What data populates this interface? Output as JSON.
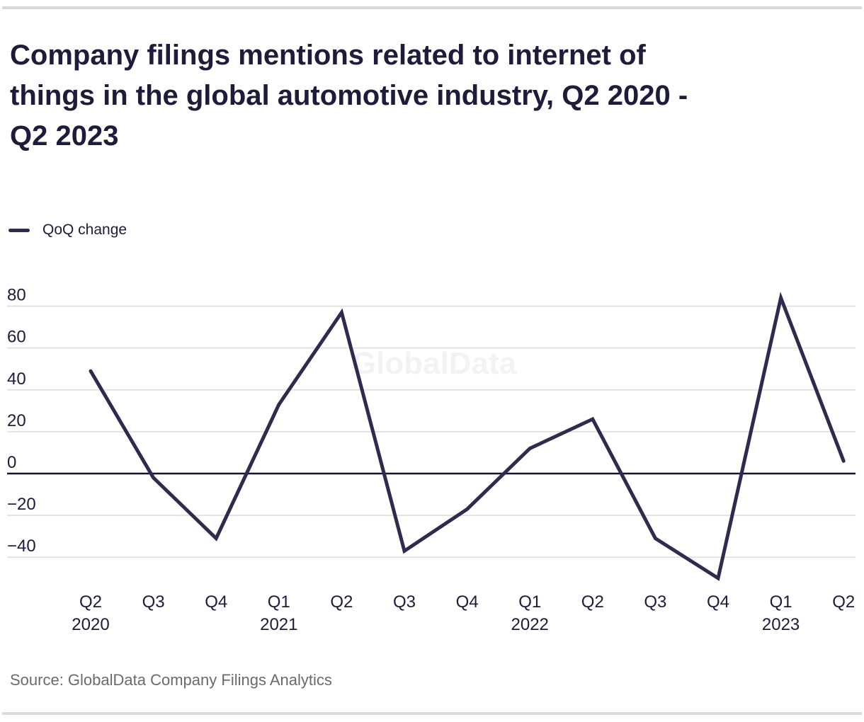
{
  "page": {
    "title_lines": [
      "Company filings mentions related to internet of",
      "things in the global automotive industry, Q2 2020 -",
      "Q2 2023"
    ],
    "source": "Source: GlobalData Company Filings Analytics"
  },
  "legend": {
    "label": "QoQ change"
  },
  "watermark": "GlobalData",
  "colors": {
    "title_text": "#1d1c3a",
    "series_line": "#2d2c4e",
    "zero_line": "#14142e",
    "gridline": "#e0e0e0",
    "axis_text": "#1d1c3a",
    "watermark": "#f3f3f3",
    "source_text": "#6b6b6b",
    "border_rule": "#d9d9d9",
    "background": "#ffffff"
  },
  "chart_data": {
    "type": "line",
    "title": "Company filings mentions related to internet of things in the global automotive industry, Q2 2020 - Q2 2023",
    "xlabel": "",
    "ylabel": "",
    "categories": [
      "Q2 2020",
      "Q3 2020",
      "Q4 2020",
      "Q1 2021",
      "Q2 2021",
      "Q3 2021",
      "Q4 2021",
      "Q1 2022",
      "Q2 2022",
      "Q3 2022",
      "Q4 2022",
      "Q1 2023",
      "Q2 2023"
    ],
    "series": [
      {
        "name": "QoQ change",
        "values": [
          49,
          -2,
          -31,
          33,
          77,
          -37,
          -17,
          12,
          26,
          -31,
          -50,
          84,
          6
        ]
      }
    ],
    "x_tick_labels": [
      {
        "quarter": "Q2",
        "year": "2020"
      },
      {
        "quarter": "Q3"
      },
      {
        "quarter": "Q4"
      },
      {
        "quarter": "Q1",
        "year": "2021"
      },
      {
        "quarter": "Q2"
      },
      {
        "quarter": "Q3"
      },
      {
        "quarter": "Q4"
      },
      {
        "quarter": "Q1",
        "year": "2022"
      },
      {
        "quarter": "Q2"
      },
      {
        "quarter": "Q3"
      },
      {
        "quarter": "Q4"
      },
      {
        "quarter": "Q1",
        "year": "2023"
      },
      {
        "quarter": "Q2"
      }
    ],
    "y_ticks": [
      {
        "value": 80,
        "label": "80"
      },
      {
        "value": 60,
        "label": "60"
      },
      {
        "value": 40,
        "label": "40"
      },
      {
        "value": 20,
        "label": "20"
      },
      {
        "value": 0,
        "label": "0"
      },
      {
        "value": -20,
        "label": "−20"
      },
      {
        "value": -40,
        "label": "−40"
      }
    ],
    "ylim": [
      -55,
      90
    ],
    "grid": "horizontal",
    "zero_baseline": true,
    "legend_position": "top-left",
    "watermark": "GlobalData"
  }
}
